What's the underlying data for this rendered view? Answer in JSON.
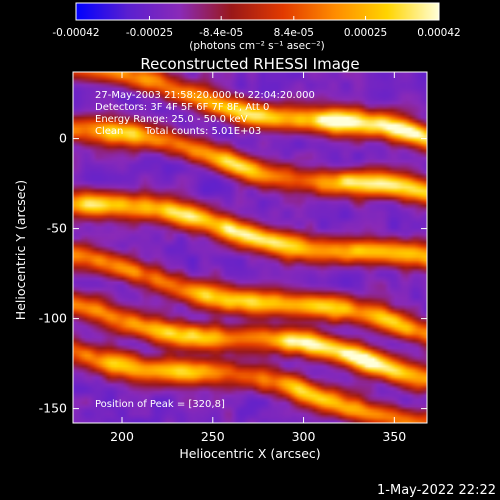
{
  "chart_data": {
    "type": "heatmap",
    "title": "Reconstructed RHESSI Image",
    "xlabel": "Heliocentric X (arcsec)",
    "ylabel": "Heliocentric Y (arcsec)",
    "xlim": [
      173,
      368
    ],
    "ylim": [
      -158,
      37
    ],
    "x_ticks": [
      200,
      250,
      300,
      350
    ],
    "y_ticks": [
      0,
      -50,
      -100,
      -150
    ],
    "colorbar": {
      "vmin": -0.00042,
      "vmax": 0.00042,
      "ticks": [
        -0.00042,
        -0.00025,
        -8.4e-05,
        8.4e-05,
        0.00025,
        0.00042
      ],
      "tick_labels": [
        "-0.00042",
        "-0.00025",
        "-8.4e-05",
        "8.4e-05",
        "0.00025",
        "0.00042"
      ],
      "unit": "(photons cm⁻² s⁻¹ asec⁻²)",
      "colormap": [
        "#0000ff",
        "#5a1fd0",
        "#8a2ab8",
        "#9a1818",
        "#e23a00",
        "#ff8c00",
        "#ffd400",
        "#ffffd8"
      ]
    },
    "annotations": {
      "time": "27-May-2003 21:58:20.000 to 22:04:20.000",
      "detectors": "Detectors: 3F 4F 5F 6F 7F 8F, Att 0",
      "energy": "Energy Range: 25.0 - 50.0 keV",
      "clean": "Clean",
      "counts": "Total counts: 5.01E+03",
      "peak": "Position of Peak = [320,8]"
    },
    "bands": [
      {
        "y0": -136,
        "slope": -0.2,
        "amp": 0.72,
        "hot": [
          [
            200,
            0.45
          ],
          [
            232,
            0.55
          ],
          [
            300,
            0.6
          ],
          [
            330,
            0.3
          ]
        ]
      },
      {
        "y0": -112,
        "slope": -0.18,
        "amp": 0.8,
        "hot": [
          [
            215,
            0.3
          ],
          [
            240,
            0.35
          ],
          [
            300,
            0.75
          ],
          [
            330,
            0.7
          ],
          [
            350,
            0.5
          ]
        ]
      },
      {
        "y0": -88,
        "slope": -0.2,
        "amp": 0.78,
        "hot": [
          [
            195,
            0.2
          ],
          [
            250,
            0.45
          ],
          [
            275,
            0.4
          ],
          [
            310,
            0.55
          ],
          [
            350,
            0.35
          ]
        ]
      },
      {
        "y0": -52,
        "slope": -0.18,
        "amp": 0.82,
        "hot": [
          [
            185,
            0.55
          ],
          [
            232,
            0.55
          ],
          [
            265,
            0.7
          ],
          [
            290,
            0.5
          ],
          [
            330,
            0.35
          ],
          [
            360,
            0.3
          ]
        ]
      },
      {
        "y0": -14,
        "slope": -0.2,
        "amp": 0.78,
        "hot": [
          [
            200,
            0.5
          ],
          [
            260,
            0.55
          ],
          [
            330,
            0.7
          ],
          [
            360,
            0.6
          ]
        ]
      },
      {
        "y0": 18,
        "slope": -0.2,
        "amp": 0.85,
        "hot": [
          [
            270,
            0.5
          ],
          [
            320,
            0.95
          ],
          [
            355,
            0.85
          ]
        ]
      }
    ],
    "peak": {
      "x": 320,
      "y": 8
    }
  },
  "footer_date": "1-May-2022 22:22"
}
